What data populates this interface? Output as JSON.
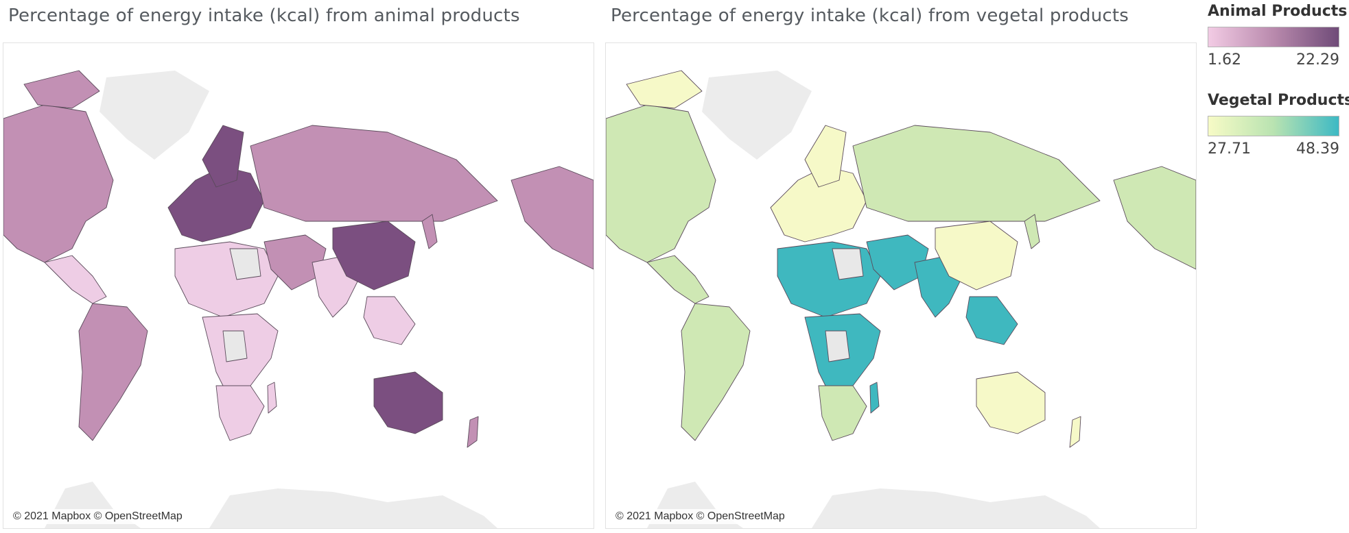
{
  "maps": [
    {
      "title": "Percentage of energy intake (kcal) from animal products",
      "credit": "© 2021 Mapbox © OpenStreetMap",
      "palette": [
        "#eecde5",
        "#c290b4",
        "#7b4f80"
      ]
    },
    {
      "title": "Percentage of energy intake (kcal) from vegetal products",
      "credit": "© 2021 Mapbox © OpenStreetMap",
      "palette": [
        "#f6f9c8",
        "#cfe8b4",
        "#3fb8bf"
      ]
    }
  ],
  "legends": [
    {
      "title": "Animal Products",
      "min": "1.62",
      "max": "22.29",
      "gradient": [
        "#f2cbe4",
        "#b98aad",
        "#6f4b78"
      ]
    },
    {
      "title": "Vegetal Products",
      "min": "27.71",
      "max": "48.39",
      "gradient": [
        "#f7fbc6",
        "#b9e3b1",
        "#3db9c4"
      ]
    }
  ],
  "no_data_color": "#e8e8e8"
}
